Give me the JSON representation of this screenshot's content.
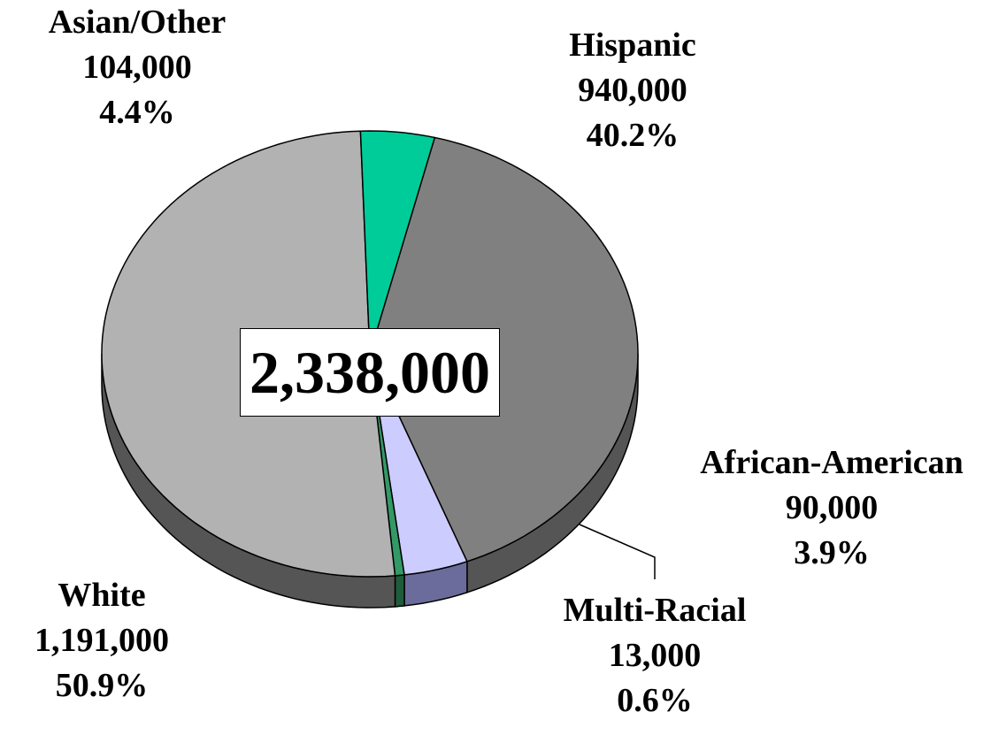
{
  "chart_data": {
    "type": "pie",
    "three_d": true,
    "center_total": "2,338,000",
    "slices": [
      {
        "name": "Hispanic",
        "value": 940000,
        "value_label": "940,000",
        "percent": 40.2,
        "percent_label": "40.2%",
        "color": "#808080",
        "side_color": "#555555"
      },
      {
        "name": "African-American",
        "value": 90000,
        "value_label": "90,000",
        "percent": 3.9,
        "percent_label": "3.9%",
        "color": "#ccccff",
        "side_color": "#6b6b9c"
      },
      {
        "name": "Multi-Racial",
        "value": 13000,
        "value_label": "13,000",
        "percent": 0.6,
        "percent_label": "0.6%",
        "color": "#339966",
        "side_color": "#1f5c3c"
      },
      {
        "name": "White",
        "value": 1191000,
        "value_label": "1,191,000",
        "percent": 50.9,
        "percent_label": "50.9%",
        "color": "#b2b2b2",
        "side_color": "#555555"
      },
      {
        "name": "Asian/Other",
        "value": 104000,
        "value_label": "104,000",
        "percent": 4.4,
        "percent_label": "4.4%",
        "color": "#00cc99",
        "side_color": "#008060"
      }
    ]
  }
}
